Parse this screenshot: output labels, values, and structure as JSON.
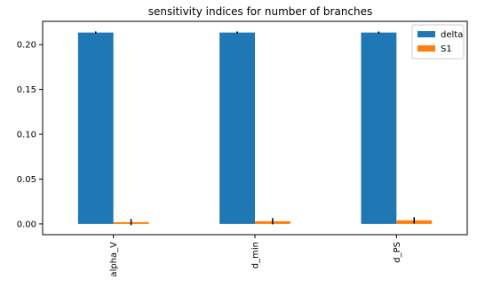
{
  "chart_data": {
    "type": "bar",
    "title": "sensitivity indices for number of branches",
    "categories": [
      "alpha_V",
      "d_min",
      "d_PS"
    ],
    "series": [
      {
        "name": "delta",
        "color": "#1f77b4",
        "values": [
          0.2135,
          0.2135,
          0.2135
        ],
        "errors": [
          0.0012,
          0.0012,
          0.0012
        ]
      },
      {
        "name": "S1",
        "color": "#ff7f0e",
        "values": [
          0.002,
          0.003,
          0.004
        ],
        "errors": [
          0.0035,
          0.0035,
          0.0035
        ]
      }
    ],
    "ylim": [
      -0.012,
      0.226
    ],
    "yticks": [
      "0.00",
      "0.05",
      "0.10",
      "0.15",
      "0.20"
    ],
    "ytick_values": [
      0,
      0.05,
      0.1,
      0.15,
      0.2
    ],
    "xlabel": "",
    "ylabel": "",
    "grid": false,
    "legend": "top-right"
  }
}
